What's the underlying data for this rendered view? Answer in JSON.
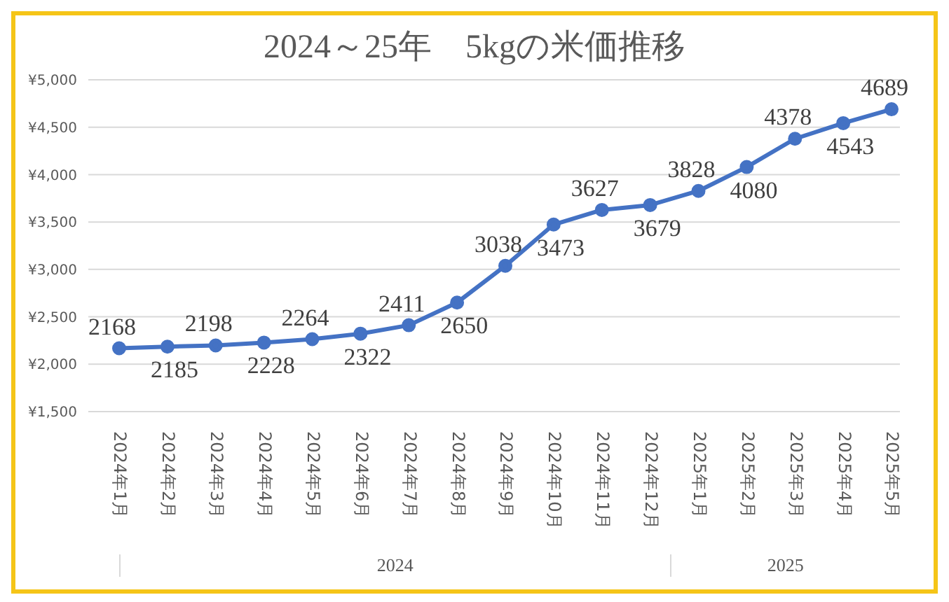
{
  "chart_data": {
    "type": "line",
    "title": "2024～25年　5kgの米価推移",
    "categories": [
      "2024年1月",
      "2024年2月",
      "2024年3月",
      "2024年4月",
      "2024年5月",
      "2024年6月",
      "2024年7月",
      "2024年8月",
      "2024年9月",
      "2024年10月",
      "2024年11月",
      "2024年12月",
      "2025年1月",
      "2025年2月",
      "2025年3月",
      "2025年4月",
      "2025年5月"
    ],
    "series": [
      {
        "color": "#4472c4",
        "values": [
          2168,
          2185,
          2198,
          2228,
          2264,
          2322,
          2411,
          2650,
          3038,
          3473,
          3627,
          3679,
          3828,
          4080,
          4378,
          4543,
          4689
        ]
      }
    ],
    "ylim": [
      1500,
      5000
    ],
    "yticks": [
      {
        "value": 1500,
        "label": "¥1,500"
      },
      {
        "value": 2000,
        "label": "¥2,000"
      },
      {
        "value": 2500,
        "label": "¥2,500"
      },
      {
        "value": 3000,
        "label": "¥3,000"
      },
      {
        "value": 3500,
        "label": "¥3,500"
      },
      {
        "value": 4000,
        "label": "¥4,000"
      },
      {
        "value": 4500,
        "label": "¥4,500"
      },
      {
        "value": 5000,
        "label": "¥5,000"
      }
    ],
    "grid": "y",
    "marker": "circle",
    "line_style": "solid",
    "data_labels": true,
    "annotations": [
      "2024",
      "2025"
    ]
  }
}
